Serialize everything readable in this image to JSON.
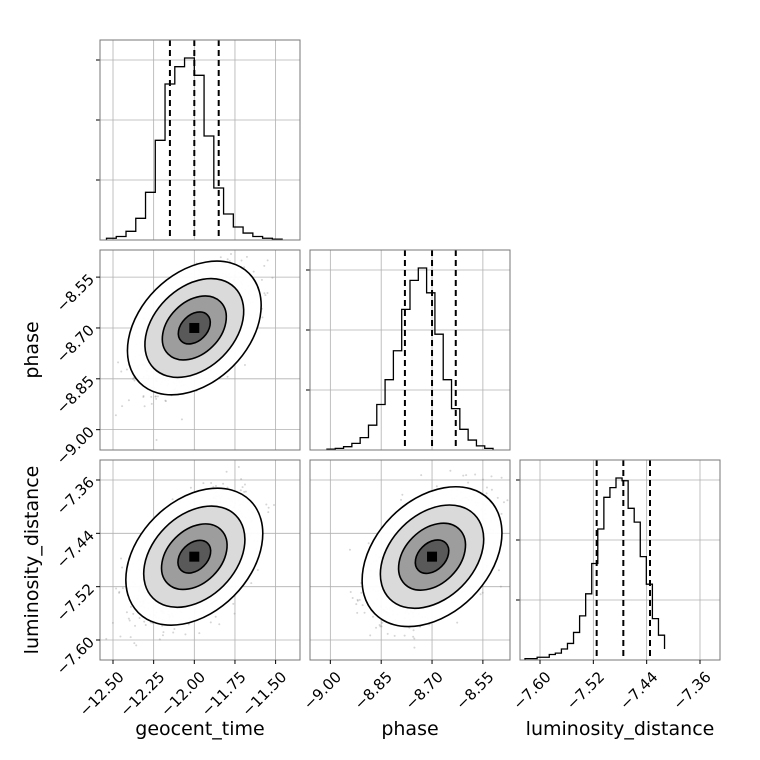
{
  "chart_data": {
    "type": "corner",
    "grid": true,
    "parameters": [
      {
        "key": "geocent_time",
        "label": "geocent_time",
        "range": [
          -12.58,
          -11.35
        ],
        "ticks": [
          -12.5,
          -12.25,
          -12.0,
          -11.75,
          -11.5
        ],
        "tick_labels": [
          "−12.50",
          "−12.25",
          "−12.00",
          "−11.75",
          "−11.50"
        ],
        "quantiles": [
          -12.15,
          -12.0,
          -11.85
        ],
        "mean": -12.0,
        "sd": 0.15
      },
      {
        "key": "phase",
        "label": "phase",
        "range": [
          -9.06,
          -8.47
        ],
        "ticks": [
          -9.0,
          -8.85,
          -8.7,
          -8.55
        ],
        "tick_labels": [
          "−9.00",
          "−8.85",
          "−8.70",
          "−8.55"
        ],
        "quantiles": [
          -8.78,
          -8.7,
          -8.63
        ],
        "mean": -8.7,
        "sd": 0.075
      },
      {
        "key": "luminosity_distance",
        "label": "luminosity_distance",
        "range": [
          -7.63,
          -7.33
        ],
        "ticks": [
          -7.6,
          -7.52,
          -7.44,
          -7.36
        ],
        "tick_labels": [
          "−7.60",
          "−7.52",
          "−7.44",
          "−7.36"
        ],
        "quantiles": [
          -7.515,
          -7.475,
          -7.435
        ],
        "mean": -7.475,
        "sd": 0.04
      }
    ],
    "histograms": [
      {
        "param": "geocent_time",
        "bins": [
          -12.54,
          -12.48,
          -12.42,
          -12.36,
          -12.3,
          -12.24,
          -12.18,
          -12.12,
          -12.06,
          -12.0,
          -11.94,
          -11.88,
          -11.82,
          -11.76,
          -11.7,
          -11.64,
          -11.58,
          -11.52,
          -11.46
        ],
        "counts": [
          2,
          4,
          10,
          25,
          55,
          115,
          180,
          200,
          210,
          190,
          120,
          60,
          30,
          15,
          8,
          4,
          2,
          1
        ]
      },
      {
        "param": "phase",
        "bins": [
          -9.01,
          -8.9855,
          -8.961,
          -8.9365,
          -8.912,
          -8.8875,
          -8.863,
          -8.8385,
          -8.814,
          -8.7895,
          -8.765,
          -8.7405,
          -8.716,
          -8.6915,
          -8.667,
          -8.6425,
          -8.618,
          -8.5935,
          -8.569,
          -8.5445,
          -8.52
        ],
        "counts": [
          1,
          2,
          4,
          8,
          15,
          30,
          55,
          85,
          120,
          170,
          205,
          220,
          190,
          140,
          85,
          50,
          25,
          12,
          5,
          2
        ]
      },
      {
        "param": "luminosity_distance",
        "bins": [
          -7.6225,
          -7.6134,
          -7.6043,
          -7.5952,
          -7.5861,
          -7.577,
          -7.5679,
          -7.5588,
          -7.5497,
          -7.5406,
          -7.5315,
          -7.5224,
          -7.5133,
          -7.5042,
          -7.4951,
          -7.486,
          -7.4769,
          -7.4678,
          -7.4587,
          -7.4496,
          -7.4405,
          -7.4314,
          -7.4223,
          -7.4132
        ],
        "counts": [
          1,
          1,
          2,
          2,
          4,
          5,
          8,
          12,
          20,
          32,
          48,
          70,
          95,
          118,
          125,
          132,
          130,
          110,
          100,
          75,
          55,
          30,
          18,
          8
        ]
      }
    ],
    "pairs": [
      {
        "x": "geocent_time",
        "y": "phase"
      },
      {
        "x": "geocent_time",
        "y": "luminosity_distance"
      },
      {
        "x": "phase",
        "y": "luminosity_distance"
      }
    ]
  }
}
